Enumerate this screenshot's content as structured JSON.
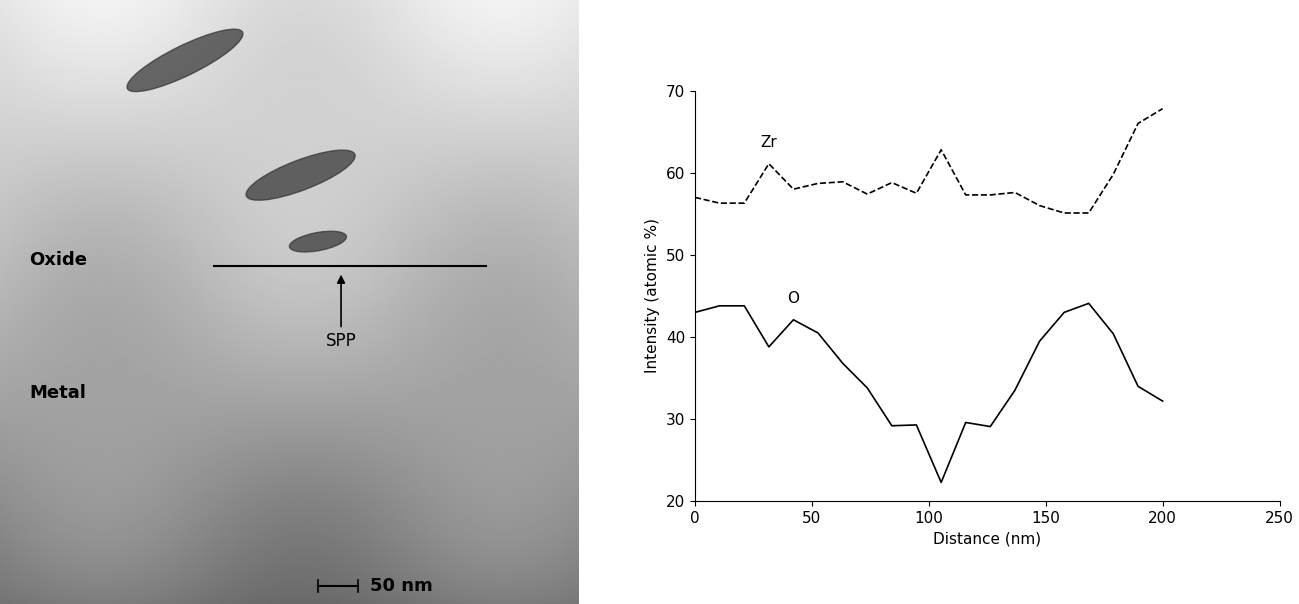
{
  "image_panel": {
    "labels": {
      "oxide": "Oxide",
      "metal": "Metal",
      "particle": "SPP"
    },
    "scale_bar": "50 nm"
  },
  "chart_data": {
    "type": "line",
    "xlabel": "Distance (nm)",
    "ylabel": "Intensity (atomic %)",
    "x": [
      0,
      10.5,
      21.1,
      31.6,
      42.1,
      52.6,
      63.2,
      73.7,
      84.2,
      94.7,
      105.3,
      115.8,
      126.3,
      136.8,
      147.4,
      157.9,
      168.4,
      178.9,
      189.5,
      200
    ],
    "series": [
      {
        "name": "Zr",
        "color": "#000000",
        "line_style": "dashed",
        "values": [
          57,
          56.3,
          56.3,
          61.1,
          58,
          58.7,
          58.9,
          57.4,
          58.8,
          57.5,
          62.8,
          57.3,
          57.3,
          57.6,
          56,
          55.1,
          55.1,
          59.8,
          66,
          67.8
        ]
      },
      {
        "name": "O",
        "color": "#000000",
        "line_style": "solid",
        "values": [
          43,
          43.8,
          43.8,
          38.8,
          42.1,
          40.5,
          36.8,
          33.8,
          29.2,
          29.3,
          22.3,
          29.6,
          29.1,
          33.5,
          39.5,
          43,
          44.1,
          40.4,
          34,
          32.2
        ]
      }
    ],
    "xlim": [
      0,
      250
    ],
    "xticks": [
      0,
      50,
      100,
      150,
      200,
      250
    ],
    "ylim": [
      20,
      70
    ],
    "yticks": [
      20,
      30,
      40,
      50,
      60,
      70
    ],
    "grid": false
  }
}
